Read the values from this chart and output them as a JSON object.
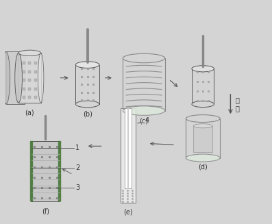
{
  "bg_color": "#d4d4d4",
  "labels": {
    "a": "(a)",
    "b": "(b)",
    "c": "(c)",
    "d": "(d)",
    "e": "(e)",
    "f": "(f)"
  },
  "press_text": "压\n入",
  "dc": "#555555",
  "lc": "#888888",
  "gc": "#4a7a3a",
  "body_fill": "#d8d8d8",
  "top_fill": "#e8e8e8",
  "dot_color": "#aaaaaa",
  "xlim": [
    0,
    10
  ],
  "ylim": [
    0,
    8.5
  ]
}
